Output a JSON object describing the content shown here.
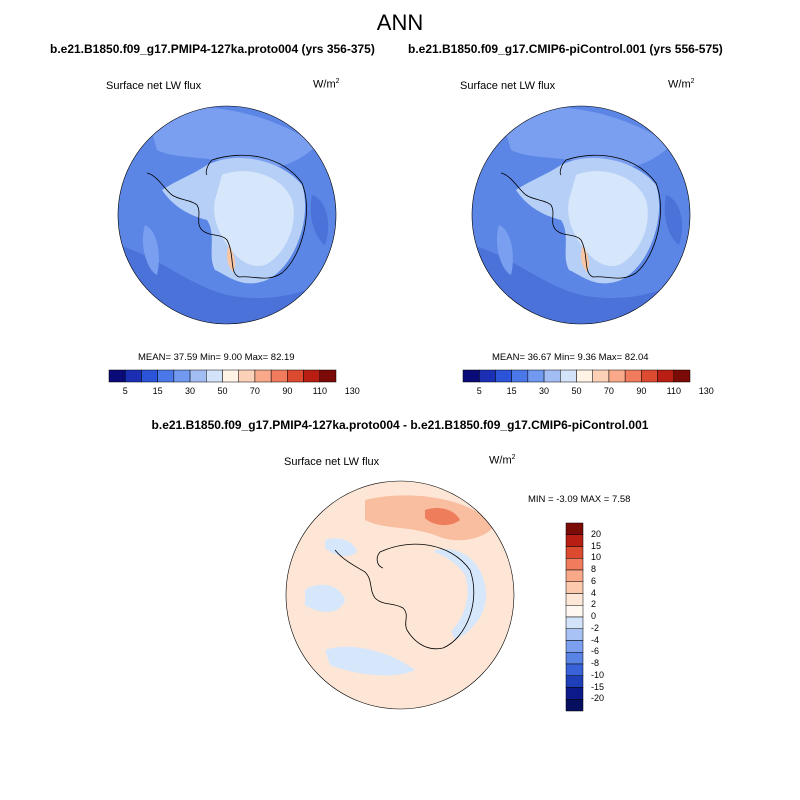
{
  "figure": {
    "title": "ANN",
    "panel_left": {
      "case_title": "b.e21.B1850.f09_g17.PMIP4-127ka.proto004 (yrs 356-375)",
      "variable_label": "Surface net LW flux",
      "units_base": "W/m",
      "units_sup": "2",
      "stats": "MEAN=  37.59  Min=   9.00  Max=  82.19"
    },
    "panel_right": {
      "case_title": "b.e21.B1850.f09_g17.CMIP6-piControl.001 (yrs 556-575)",
      "variable_label": "Surface net LW flux",
      "units_base": "W/m",
      "units_sup": "2",
      "stats": "MEAN=  36.67  Min=   9.36  Max=  82.04"
    },
    "diff_title": "b.e21.B1850.f09_g17.PMIP4-127ka.proto004 - b.e21.B1850.f09_g17.CMIP6-piControl.001",
    "panel_diff": {
      "variable_label": "Surface net LW flux",
      "units_base": "W/m",
      "units_sup": "2",
      "stats": "MIN =  -3.09 MAX =   7.58"
    }
  },
  "colorbar_abs": {
    "tick_labels": [
      "5",
      "15",
      "30",
      "50",
      "70",
      "90",
      "110",
      "130"
    ],
    "colors": [
      "#0a0a78",
      "#1a2fb4",
      "#2b54d8",
      "#4b78e8",
      "#7199ef",
      "#a2bdf4",
      "#d3e3fa",
      "#fff3e6",
      "#fdd1b8",
      "#f9a98a",
      "#f07b5d",
      "#dc4a2f",
      "#b81f12",
      "#7a0b06"
    ]
  },
  "colorbar_diff": {
    "tick_labels": [
      "20",
      "15",
      "10",
      "8",
      "6",
      "4",
      "2",
      "0",
      "-2",
      "-4",
      "-6",
      "-8",
      "-10",
      "-15",
      "-20"
    ],
    "colors": [
      "#7a0b06",
      "#b81f12",
      "#dc4a2f",
      "#f07b5d",
      "#f9a98a",
      "#fcc9ad",
      "#fde8d8",
      "#fff8f0",
      "#d3e3fa",
      "#a8c2f5",
      "#7c9fef",
      "#5a83e6",
      "#3a62d8",
      "#1f3fb8",
      "#0d1b8a",
      "#06105e"
    ]
  },
  "colors": {
    "ocean_abs": "#5b86e5",
    "ocean_abs_light": "#7a9ff0",
    "ocean_abs_dark": "#4a72d8",
    "ice_light": "#d6e6fb",
    "ice_mid": "#b6cff7",
    "peninsula_warm": "#f7c6a5",
    "diff_base": "#fde6d6",
    "diff_neg": "#d6e6fb",
    "diff_pos": "#f9bea0",
    "diff_pos_strong": "#ee7e5b",
    "coast": "#000000"
  }
}
